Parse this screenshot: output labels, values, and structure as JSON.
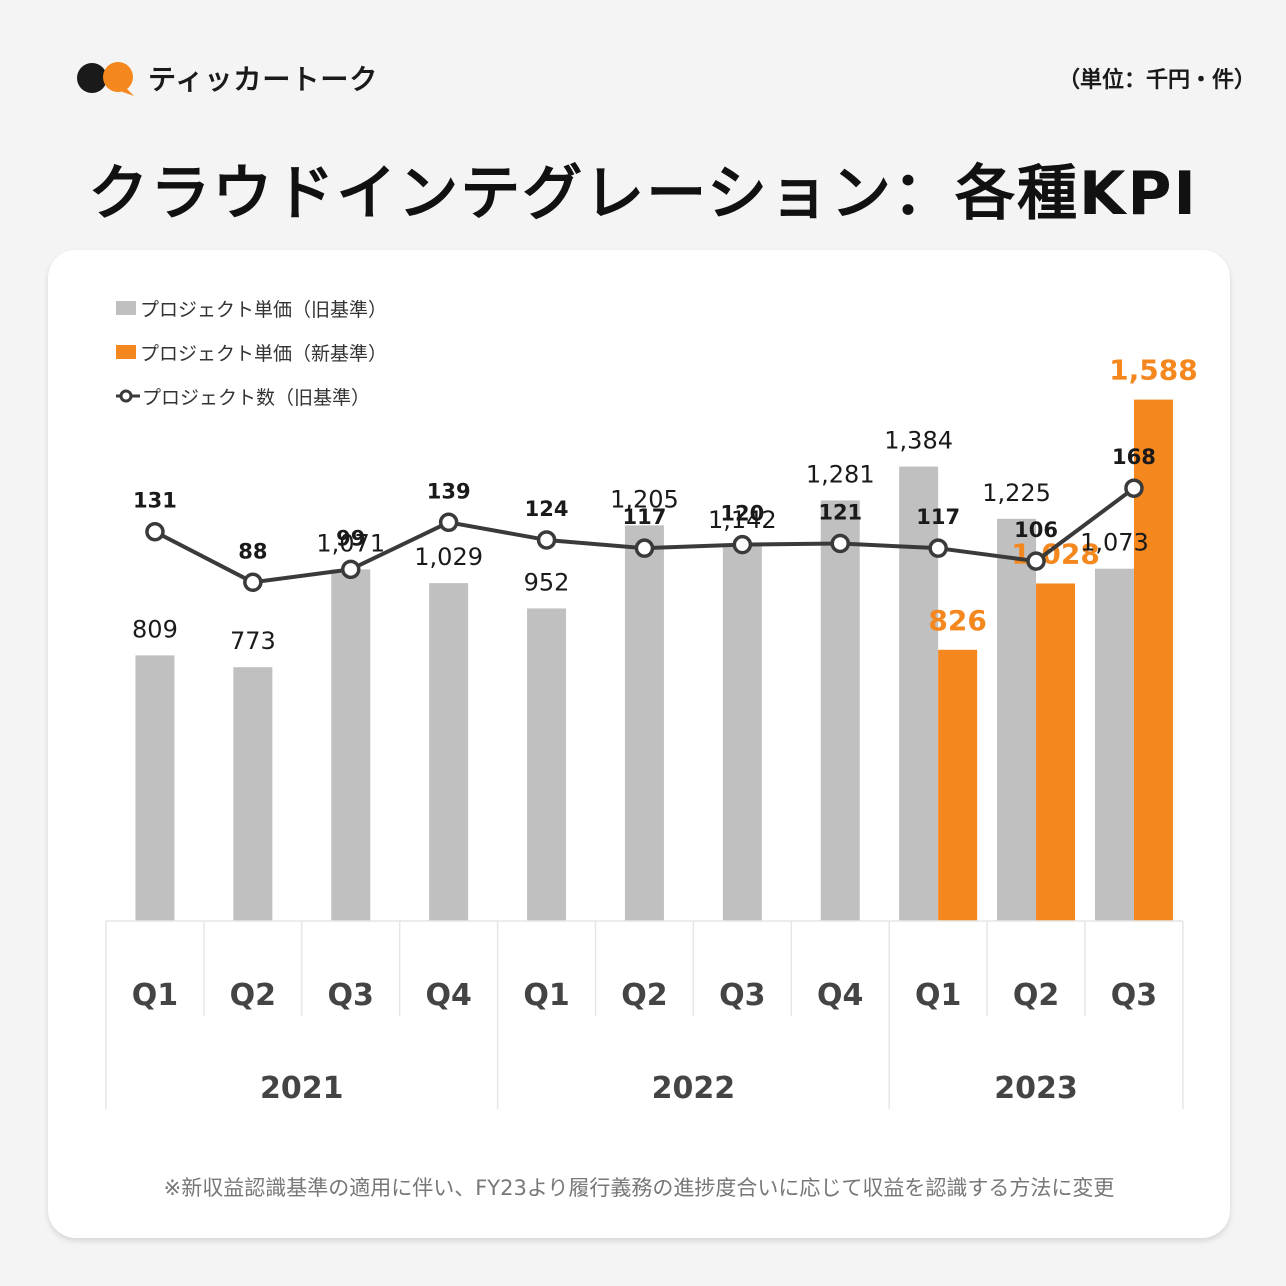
{
  "header": {
    "logo_text": "ティッカートーク",
    "unit_note": "（単位：千円・件）",
    "title": "クラウドインテグレーション：各種KPI"
  },
  "colors": {
    "old_bar": "#c0c0c0",
    "new_bar": "#f5871f",
    "line": "#3a3a3a",
    "logo_dark": "#1a1a1a",
    "logo_orange": "#f5871f"
  },
  "legend": [
    {
      "label": "プロジェクト単価（旧基準）",
      "kind": "gray-bar"
    },
    {
      "label": "プロジェクト単価（新基準）",
      "kind": "orange-bar"
    },
    {
      "label": "プロジェクト数（旧基準）",
      "kind": "line"
    }
  ],
  "chart_data": {
    "type": "bar",
    "categories": [
      "Q1",
      "Q2",
      "Q3",
      "Q4",
      "Q1",
      "Q2",
      "Q3",
      "Q4",
      "Q1",
      "Q2",
      "Q3"
    ],
    "years": [
      {
        "label": "2021",
        "start": 0,
        "end": 3
      },
      {
        "label": "2022",
        "start": 4,
        "end": 7
      },
      {
        "label": "2023",
        "start": 8,
        "end": 10
      }
    ],
    "series": [
      {
        "name": "プロジェクト単価（旧基準）",
        "kind": "bar",
        "values": [
          809,
          773,
          1071,
          1029,
          952,
          1205,
          1142,
          1281,
          1384,
          1225,
          1073
        ],
        "labels": [
          "809",
          "773",
          "1,071",
          "1,029",
          "952",
          "1,205",
          "1,142",
          "1,281",
          "1,384",
          "1,225",
          "1,073"
        ]
      },
      {
        "name": "プロジェクト単価（新基準）",
        "kind": "bar",
        "values": [
          null,
          null,
          null,
          null,
          null,
          null,
          null,
          null,
          826,
          1028,
          1588
        ],
        "labels": [
          null,
          null,
          null,
          null,
          null,
          null,
          null,
          null,
          "826",
          "1,028",
          "1,588"
        ]
      },
      {
        "name": "プロジェクト数（旧基準）",
        "kind": "line",
        "values": [
          131,
          88,
          99,
          139,
          124,
          117,
          120,
          121,
          117,
          106,
          168
        ],
        "labels": [
          "131",
          "88",
          "99",
          "139",
          "124",
          "117",
          "120",
          "121",
          "117",
          "106",
          "168"
        ]
      }
    ],
    "bar_axis": {
      "ylim": [
        0,
        1800
      ]
    },
    "line_axis": {
      "ylim": [
        -200,
        260
      ]
    }
  },
  "footnote": "※新収益認識基準の適用に伴い、FY23より履行義務の進捗度合いに応じて収益を認識する方法に変更"
}
